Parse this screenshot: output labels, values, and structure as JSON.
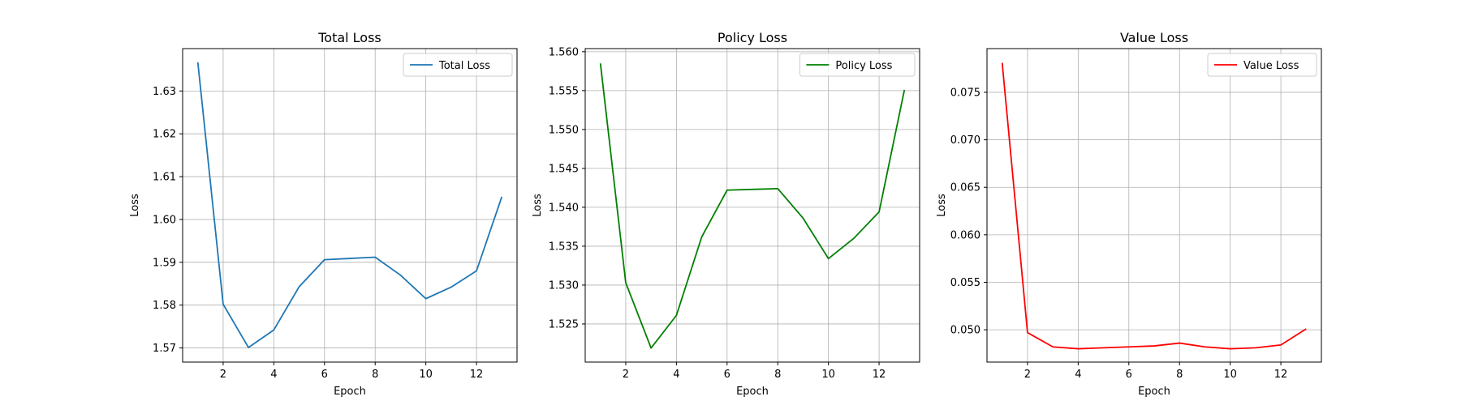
{
  "chart_data": [
    {
      "type": "line",
      "title": "Total Loss",
      "xlabel": "Epoch",
      "ylabel": "Loss",
      "xlim": [
        0.4,
        13.6
      ],
      "ylim": [
        1.5667,
        1.6399
      ],
      "xticks": [
        2,
        4,
        6,
        8,
        10,
        12
      ],
      "yticks": [
        1.57,
        1.58,
        1.59,
        1.6,
        1.61,
        1.62,
        1.63
      ],
      "ytick_labels": [
        "1.57",
        "1.58",
        "1.59",
        "1.60",
        "1.61",
        "1.62",
        "1.63"
      ],
      "grid": true,
      "legend_position": "top-right",
      "series": [
        {
          "name": "Total Loss",
          "color": "#1f77b4",
          "x": [
            1,
            2,
            3,
            4,
            5,
            6,
            7,
            8,
            9,
            10,
            11,
            12,
            13
          ],
          "y": [
            1.6367,
            1.5802,
            1.5701,
            1.5742,
            1.5843,
            1.5906,
            1.5909,
            1.5912,
            1.587,
            1.5815,
            1.5842,
            1.588,
            1.6053
          ]
        }
      ]
    },
    {
      "type": "line",
      "title": "Policy Loss",
      "xlabel": "Epoch",
      "ylabel": "Loss",
      "xlim": [
        0.4,
        13.6
      ],
      "ylim": [
        1.5201,
        1.5604
      ],
      "xticks": [
        2,
        4,
        6,
        8,
        10,
        12
      ],
      "yticks": [
        1.525,
        1.53,
        1.535,
        1.54,
        1.545,
        1.55,
        1.555,
        1.56
      ],
      "ytick_labels": [
        "1.525",
        "1.530",
        "1.535",
        "1.540",
        "1.545",
        "1.550",
        "1.555",
        "1.560"
      ],
      "grid": true,
      "legend_position": "top-right",
      "series": [
        {
          "name": "Policy Loss",
          "color": "#008000",
          "x": [
            1,
            2,
            3,
            4,
            5,
            6,
            7,
            8,
            9,
            10,
            11,
            12,
            13
          ],
          "y": [
            1.5585,
            1.5303,
            1.5219,
            1.5261,
            1.5362,
            1.5422,
            1.5423,
            1.5424,
            1.5386,
            1.5334,
            1.536,
            1.5394,
            1.5551
          ]
        }
      ]
    },
    {
      "type": "line",
      "title": "Value Loss",
      "xlabel": "Epoch",
      "ylabel": "Loss",
      "xlim": [
        0.4,
        13.6
      ],
      "ylim": [
        0.0466,
        0.0796
      ],
      "xticks": [
        2,
        4,
        6,
        8,
        10,
        12
      ],
      "yticks": [
        0.05,
        0.055,
        0.06,
        0.065,
        0.07,
        0.075
      ],
      "ytick_labels": [
        "0.050",
        "0.055",
        "0.060",
        "0.065",
        "0.070",
        "0.075"
      ],
      "grid": true,
      "legend_position": "top-right",
      "series": [
        {
          "name": "Value Loss",
          "color": "#ff0000",
          "x": [
            1,
            2,
            3,
            4,
            5,
            6,
            7,
            8,
            9,
            10,
            11,
            12,
            13
          ],
          "y": [
            0.0781,
            0.0497,
            0.0482,
            0.048,
            0.0481,
            0.0482,
            0.0483,
            0.0486,
            0.0482,
            0.048,
            0.0481,
            0.0484,
            0.0501
          ]
        }
      ]
    }
  ]
}
